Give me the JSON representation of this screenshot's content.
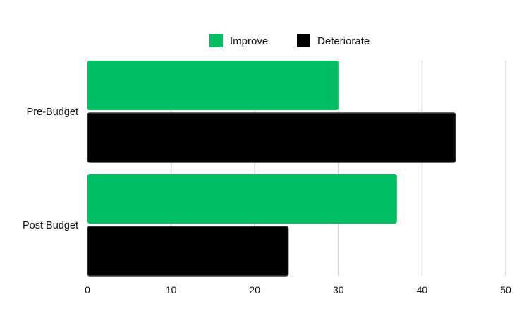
{
  "chart_data": {
    "type": "bar",
    "orientation": "horizontal",
    "categories": [
      "Pre-Budget",
      "Post Budget"
    ],
    "series": [
      {
        "name": "Improve",
        "color": "#00bf63",
        "values": [
          30,
          37
        ]
      },
      {
        "name": "Deteriorate",
        "color": "#000000",
        "values": [
          44,
          24
        ]
      }
    ],
    "xlim": [
      0,
      50
    ],
    "xticks": [
      0,
      10,
      20,
      30,
      40,
      50
    ],
    "grid": "vertical",
    "legend": "top-center",
    "title": "",
    "xlabel": "",
    "ylabel": ""
  }
}
